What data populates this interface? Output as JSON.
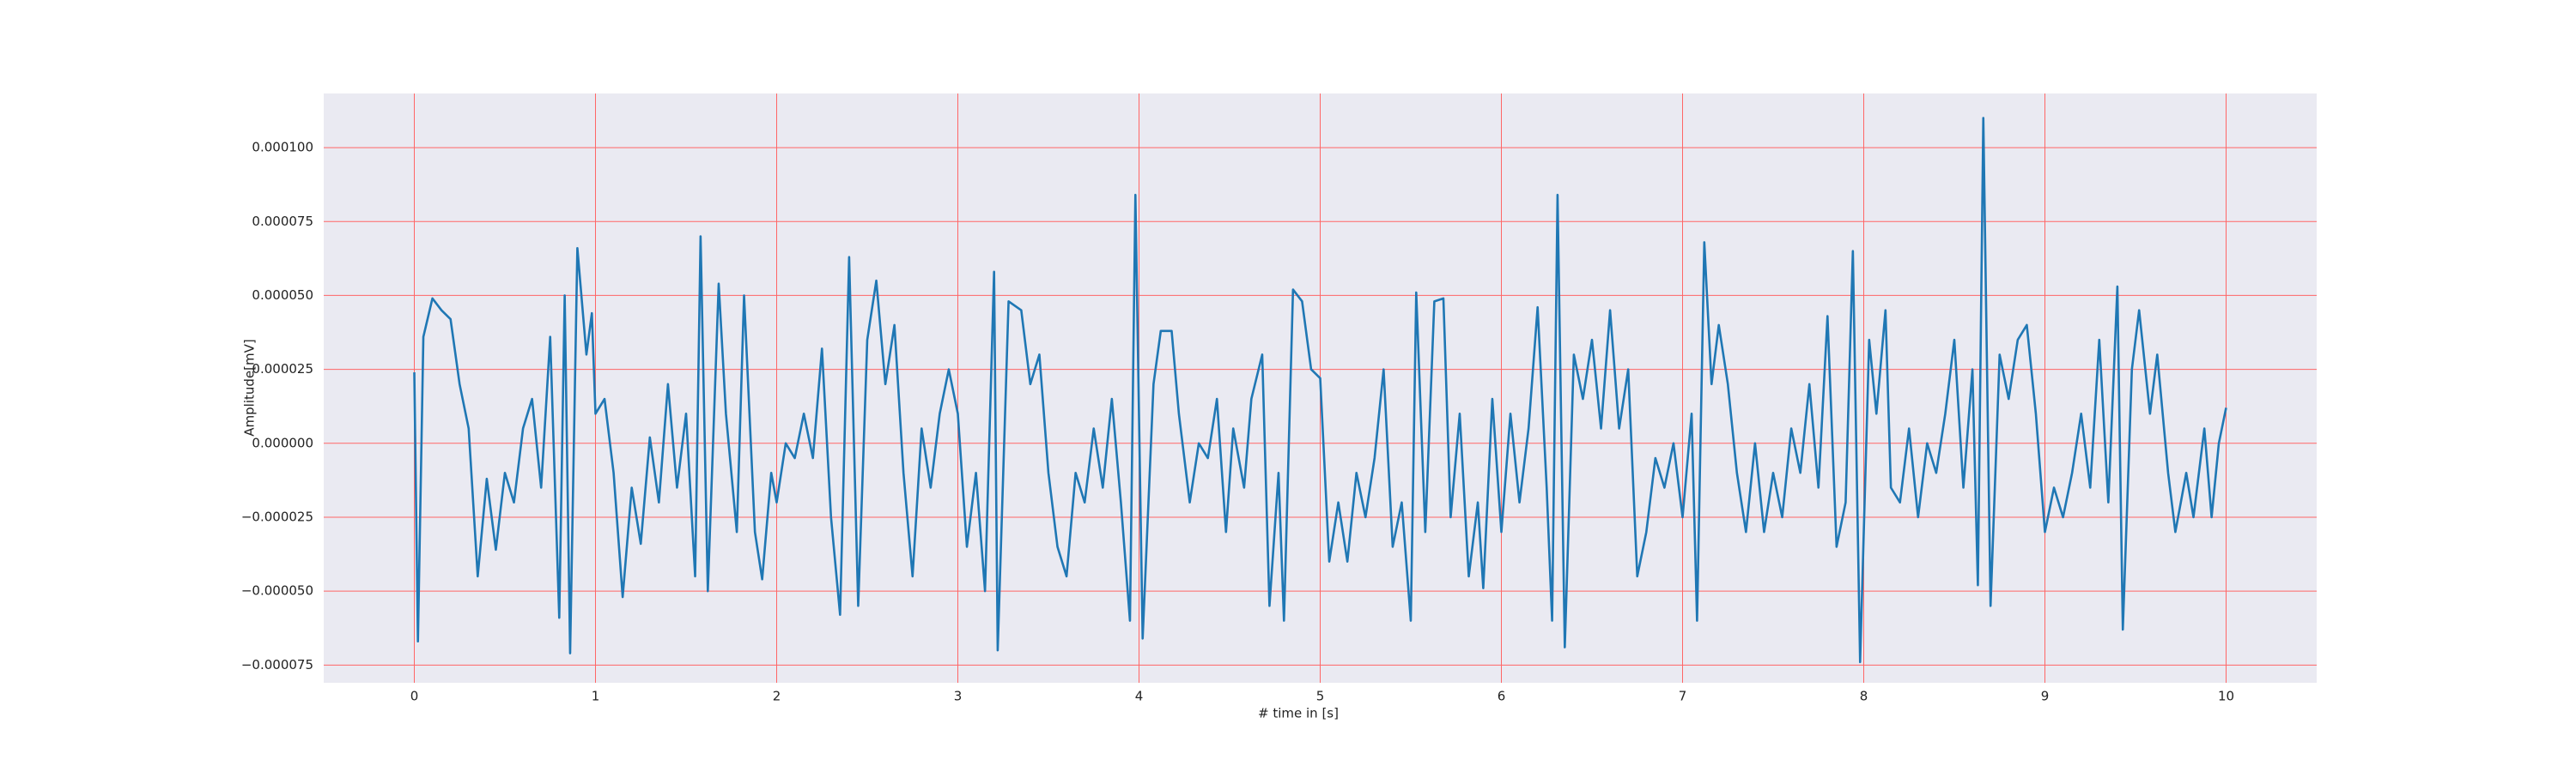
{
  "chart_data": {
    "type": "line",
    "xlabel": "# time in [s]",
    "ylabel": "Amplitude[mV]",
    "x": [
      0,
      0.02,
      0.05,
      0.1,
      0.15,
      0.2,
      0.25,
      0.3,
      0.35,
      0.4,
      0.45,
      0.5,
      0.55,
      0.6,
      0.65,
      0.7,
      0.75,
      0.8,
      0.83,
      0.86,
      0.9,
      0.95,
      0.98,
      1.0,
      1.05,
      1.1,
      1.15,
      1.2,
      1.25,
      1.3,
      1.35,
      1.4,
      1.45,
      1.5,
      1.55,
      1.58,
      1.62,
      1.68,
      1.72,
      1.78,
      1.82,
      1.88,
      1.92,
      1.97,
      2.0,
      2.05,
      2.1,
      2.15,
      2.2,
      2.25,
      2.3,
      2.35,
      2.4,
      2.45,
      2.5,
      2.55,
      2.6,
      2.65,
      2.7,
      2.75,
      2.8,
      2.85,
      2.9,
      2.95,
      3.0,
      3.05,
      3.1,
      3.15,
      3.2,
      3.22,
      3.28,
      3.35,
      3.4,
      3.45,
      3.5,
      3.55,
      3.6,
      3.65,
      3.7,
      3.75,
      3.8,
      3.85,
      3.9,
      3.95,
      3.98,
      4.02,
      4.08,
      4.12,
      4.18,
      4.22,
      4.28,
      4.33,
      4.38,
      4.43,
      4.48,
      4.52,
      4.58,
      4.62,
      4.68,
      4.72,
      4.77,
      4.8,
      4.85,
      4.9,
      4.95,
      5.0,
      5.05,
      5.1,
      5.15,
      5.2,
      5.25,
      5.3,
      5.35,
      5.4,
      5.45,
      5.5,
      5.53,
      5.58,
      5.63,
      5.68,
      5.72,
      5.77,
      5.82,
      5.87,
      5.9,
      5.95,
      6.0,
      6.05,
      6.1,
      6.15,
      6.2,
      6.25,
      6.28,
      6.31,
      6.35,
      6.4,
      6.45,
      6.5,
      6.55,
      6.6,
      6.65,
      6.7,
      6.75,
      6.8,
      6.85,
      6.9,
      6.95,
      7.0,
      7.05,
      7.08,
      7.12,
      7.16,
      7.2,
      7.25,
      7.3,
      7.35,
      7.4,
      7.45,
      7.5,
      7.55,
      7.6,
      7.65,
      7.7,
      7.75,
      7.8,
      7.85,
      7.9,
      7.94,
      7.98,
      8.03,
      8.07,
      8.12,
      8.15,
      8.2,
      8.25,
      8.3,
      8.35,
      8.4,
      8.45,
      8.5,
      8.55,
      8.6,
      8.63,
      8.66,
      8.7,
      8.75,
      8.8,
      8.85,
      8.9,
      8.95,
      9.0,
      9.05,
      9.1,
      9.15,
      9.2,
      9.25,
      9.3,
      9.35,
      9.4,
      9.43,
      9.48,
      9.52,
      9.58,
      9.62,
      9.68,
      9.72,
      9.78,
      9.82,
      9.88,
      9.92,
      9.96,
      10.0
    ],
    "series": [
      {
        "color": "#1f77b4",
        "values": [
          2.4e-05,
          -6.7e-05,
          3.6e-05,
          4.9e-05,
          4.5e-05,
          4.2e-05,
          2e-05,
          5e-06,
          -4.5e-05,
          -1.2e-05,
          -3.6e-05,
          -1e-05,
          -2e-05,
          5e-06,
          1.5e-05,
          -1.5e-05,
          3.6e-05,
          -5.9e-05,
          5e-05,
          -7.1e-05,
          6.6e-05,
          3e-05,
          4.4e-05,
          1e-05,
          1.5e-05,
          -1e-05,
          -5.2e-05,
          -1.5e-05,
          -3.4e-05,
          2e-06,
          -2e-05,
          2e-05,
          -1.5e-05,
          1e-05,
          -4.5e-05,
          7e-05,
          -5e-05,
          5.4e-05,
          1e-05,
          -3e-05,
          5e-05,
          -3e-05,
          -4.6e-05,
          -1e-05,
          -2e-05,
          0,
          -5e-06,
          1e-05,
          -5e-06,
          3.2e-05,
          -2.5e-05,
          -5.8e-05,
          6.3e-05,
          -5.5e-05,
          3.5e-05,
          5.5e-05,
          2e-05,
          4e-05,
          -1e-05,
          -4.5e-05,
          5e-06,
          -1.5e-05,
          1e-05,
          2.5e-05,
          1e-05,
          -3.5e-05,
          -1e-05,
          -5e-05,
          5.8e-05,
          -7e-05,
          4.8e-05,
          4.5e-05,
          2e-05,
          3e-05,
          -1e-05,
          -3.5e-05,
          -4.5e-05,
          -1e-05,
          -2e-05,
          5e-06,
          -1.5e-05,
          1.5e-05,
          -2e-05,
          -6e-05,
          8.4e-05,
          -6.6e-05,
          2e-05,
          3.8e-05,
          3.8e-05,
          1e-05,
          -2e-05,
          0,
          -5e-06,
          1.5e-05,
          -3e-05,
          5e-06,
          -1.5e-05,
          1.5e-05,
          3e-05,
          -5.5e-05,
          -1e-05,
          -6e-05,
          5.2e-05,
          4.8e-05,
          2.5e-05,
          2.2e-05,
          -4e-05,
          -2e-05,
          -4e-05,
          -1e-05,
          -2.5e-05,
          -5e-06,
          2.5e-05,
          -3.5e-05,
          -2e-05,
          -6e-05,
          5.1e-05,
          -3e-05,
          4.8e-05,
          4.9e-05,
          -2.5e-05,
          1e-05,
          -4.5e-05,
          -2e-05,
          -4.9e-05,
          1.5e-05,
          -3e-05,
          1e-05,
          -2e-05,
          5e-06,
          4.6e-05,
          -1.5e-05,
          -6e-05,
          8.4e-05,
          -6.9e-05,
          3e-05,
          1.5e-05,
          3.5e-05,
          5e-06,
          4.5e-05,
          5e-06,
          2.5e-05,
          -4.5e-05,
          -3e-05,
          -5e-06,
          -1.5e-05,
          0,
          -2.5e-05,
          1e-05,
          -6e-05,
          6.8e-05,
          2e-05,
          4e-05,
          2e-05,
          -1e-05,
          -3e-05,
          0,
          -3e-05,
          -1e-05,
          -2.5e-05,
          5e-06,
          -1e-05,
          2e-05,
          -1.5e-05,
          4.3e-05,
          -3.5e-05,
          -2e-05,
          6.5e-05,
          -7.4e-05,
          3.5e-05,
          1e-05,
          4.5e-05,
          -1.5e-05,
          -2e-05,
          5e-06,
          -2.5e-05,
          0,
          -1e-05,
          1e-05,
          3.5e-05,
          -1.5e-05,
          2.5e-05,
          -4.8e-05,
          0.00011,
          -5.5e-05,
          3e-05,
          1.5e-05,
          3.5e-05,
          4e-05,
          1e-05,
          -3e-05,
          -1.5e-05,
          -2.5e-05,
          -1e-05,
          1e-05,
          -1.5e-05,
          3.5e-05,
          -2e-05,
          5.3e-05,
          -6.3e-05,
          2.5e-05,
          4.5e-05,
          1e-05,
          3e-05,
          -1e-05,
          -3e-05,
          -1e-05,
          -2.5e-05,
          5e-06,
          -2.5e-05,
          0,
          1.2e-05
        ]
      }
    ],
    "xlim": [
      -0.5,
      10.5
    ],
    "xticks": [
      0,
      1,
      2,
      3,
      4,
      5,
      6,
      7,
      8,
      9,
      10
    ],
    "ylim": [
      -8.1e-05,
      0.0001183
    ],
    "yticks": [
      {
        "value": -7.5e-05,
        "label": "−0.000075"
      },
      {
        "value": -5e-05,
        "label": "−0.000050"
      },
      {
        "value": -2.5e-05,
        "label": "−0.000025"
      },
      {
        "value": 0,
        "label": "0.000000"
      },
      {
        "value": 2.5e-05,
        "label": "0.000025"
      },
      {
        "value": 5e-05,
        "label": "0.000050"
      },
      {
        "value": 7.5e-05,
        "label": "0.000075"
      },
      {
        "value": 0.0001,
        "label": "0.000100"
      }
    ],
    "grid": true,
    "grid_color": "#ff6666",
    "background": "#eaeaf2"
  }
}
